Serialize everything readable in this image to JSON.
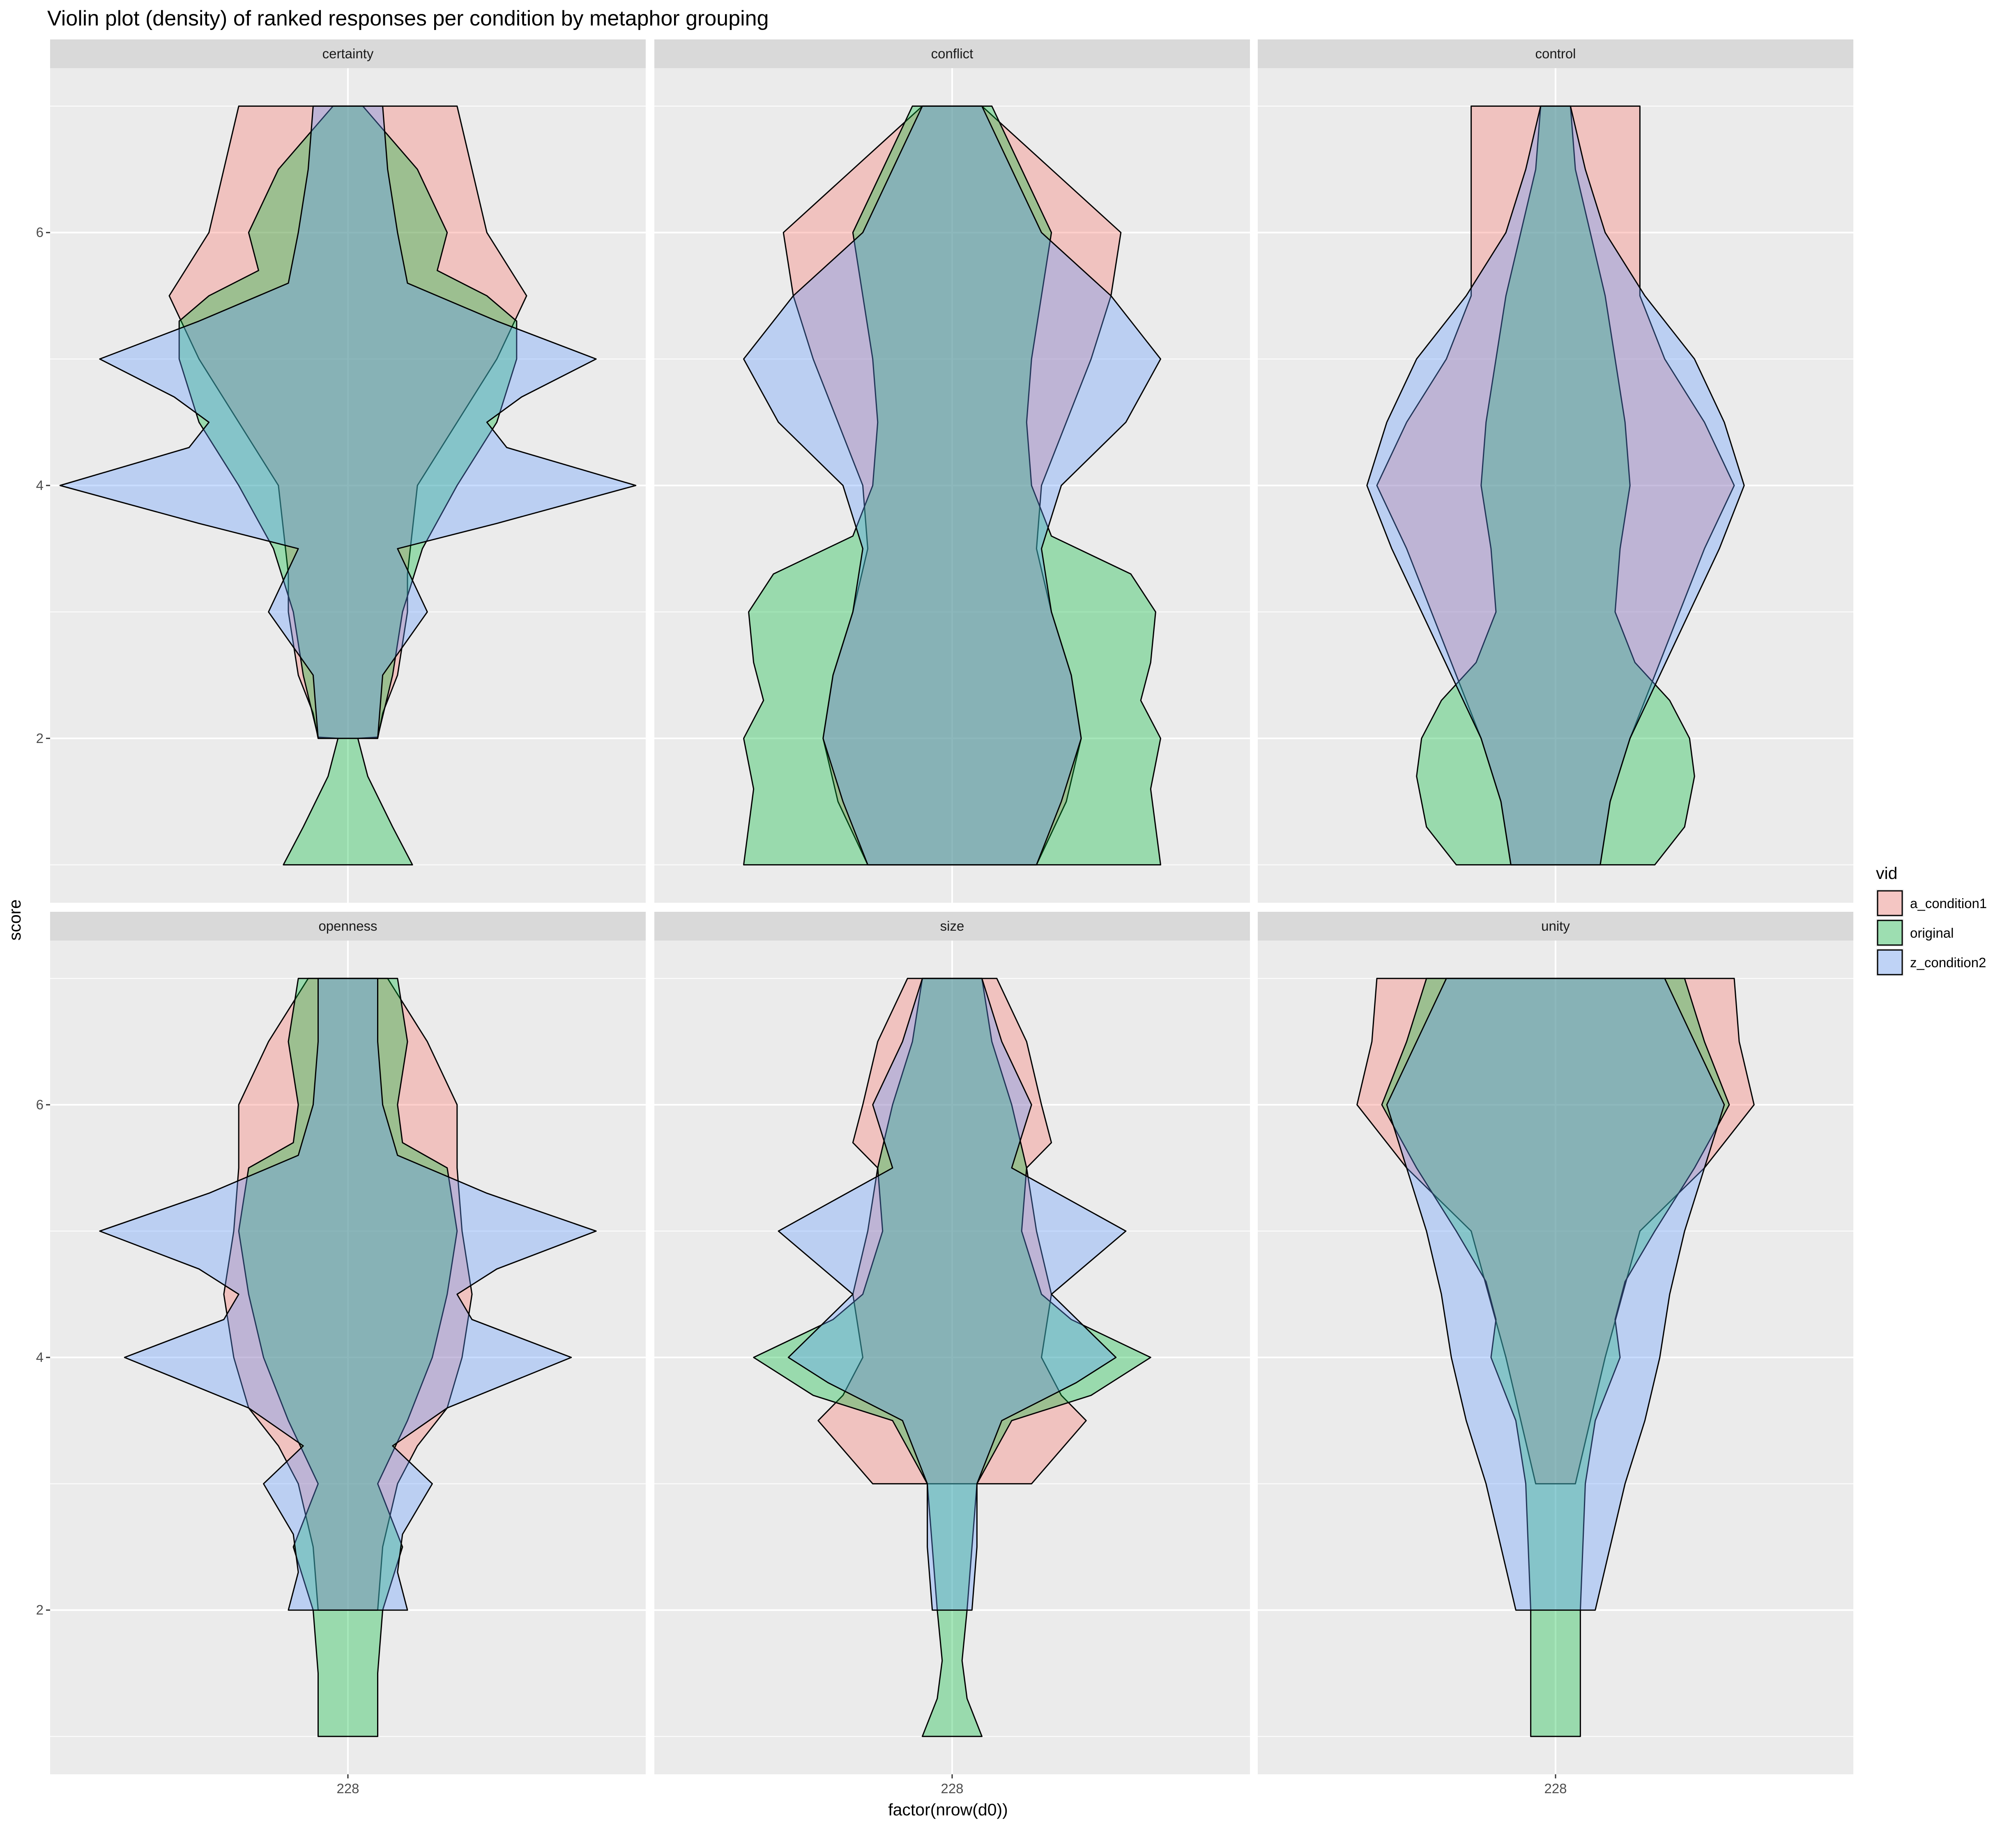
{
  "chart_data": {
    "type": "violin",
    "title": "Violin plot (density) of ranked responses per condition by metaphor grouping",
    "xlabel": "factor(nrow(d0))",
    "ylabel": "score",
    "x_categories": [
      "228"
    ],
    "ylim": [
      0.7,
      7.3
    ],
    "y_ticks": [
      2,
      4,
      6
    ],
    "grid": true,
    "legend": {
      "title": "vid",
      "position": "right",
      "entries": [
        {
          "name": "a_condition1",
          "color": "#F8766D"
        },
        {
          "name": "original",
          "color": "#00BA38"
        },
        {
          "name": "z_condition2",
          "color": "#619CFF"
        }
      ]
    },
    "facets": [
      {
        "label": "certainty",
        "violins": [
          {
            "series": "a_condition1",
            "y": [
              2,
              2.2,
              2.5,
              3,
              3.3,
              4,
              5,
              5.5,
              6,
              6.5,
              7
            ],
            "half_width": [
              0.06,
              0.07,
              0.1,
              0.12,
              0.12,
              0.14,
              0.3,
              0.36,
              0.28,
              0.25,
              0.22
            ]
          },
          {
            "series": "original",
            "y": [
              1,
              1.3,
              1.7,
              2,
              2.01,
              2.5,
              3,
              3.5,
              4,
              4.5,
              5,
              5.3,
              5.5,
              5.7,
              6,
              6.5,
              7
            ],
            "half_width": [
              0.13,
              0.09,
              0.04,
              0.02,
              0.06,
              0.09,
              0.11,
              0.15,
              0.22,
              0.3,
              0.34,
              0.34,
              0.28,
              0.18,
              0.2,
              0.14,
              0.03
            ]
          },
          {
            "series": "z_condition2",
            "y": [
              2,
              2.5,
              3,
              3.5,
              3.7,
              4,
              4.3,
              4.5,
              4.7,
              5,
              5.3,
              5.6,
              6,
              6.5,
              7
            ],
            "half_width": [
              0.06,
              0.07,
              0.16,
              0.1,
              0.3,
              0.58,
              0.32,
              0.28,
              0.35,
              0.5,
              0.3,
              0.12,
              0.1,
              0.08,
              0.07
            ]
          }
        ]
      },
      {
        "label": "conflict",
        "violins": [
          {
            "series": "a_condition1",
            "y": [
              1,
              1.5,
              2,
              2.5,
              3,
              3.5,
              4,
              4.5,
              5,
              5.5,
              6,
              6.5,
              7
            ],
            "half_width": [
              0.17,
              0.23,
              0.26,
              0.24,
              0.2,
              0.17,
              0.18,
              0.23,
              0.28,
              0.32,
              0.34,
              0.2,
              0.06
            ]
          },
          {
            "series": "original",
            "y": [
              1,
              1.3,
              1.6,
              2,
              2.3,
              2.6,
              3,
              3.3,
              3.6,
              4,
              4.5,
              5,
              5.5,
              6,
              6.5,
              7
            ],
            "half_width": [
              0.42,
              0.41,
              0.4,
              0.42,
              0.38,
              0.4,
              0.41,
              0.36,
              0.2,
              0.16,
              0.15,
              0.16,
              0.18,
              0.2,
              0.14,
              0.08
            ]
          },
          {
            "series": "z_condition2",
            "y": [
              1,
              1.5,
              2,
              2.5,
              3,
              3.5,
              4,
              4.5,
              5,
              5.5,
              6,
              6.5,
              7
            ],
            "half_width": [
              0.17,
              0.22,
              0.26,
              0.24,
              0.2,
              0.18,
              0.22,
              0.35,
              0.42,
              0.32,
              0.18,
              0.12,
              0.06
            ]
          }
        ]
      },
      {
        "label": "control",
        "violins": [
          {
            "series": "a_condition1",
            "y": [
              1,
              1.5,
              2,
              2.5,
              3,
              3.5,
              4,
              4.5,
              5,
              5.5,
              6,
              6.5,
              7
            ],
            "half_width": [
              0.09,
              0.11,
              0.15,
              0.2,
              0.25,
              0.3,
              0.36,
              0.3,
              0.22,
              0.17,
              0.17,
              0.17,
              0.17
            ]
          },
          {
            "series": "original",
            "y": [
              1,
              1.3,
              1.7,
              2,
              2.3,
              2.6,
              3,
              3.5,
              4,
              4.5,
              5,
              5.5,
              6,
              6.5,
              7
            ],
            "half_width": [
              0.2,
              0.26,
              0.28,
              0.27,
              0.23,
              0.16,
              0.12,
              0.13,
              0.15,
              0.14,
              0.12,
              0.1,
              0.07,
              0.04,
              0.03
            ]
          },
          {
            "series": "z_condition2",
            "y": [
              1,
              1.5,
              2,
              2.5,
              3,
              3.5,
              4,
              4.5,
              5,
              5.5,
              6,
              6.5,
              7
            ],
            "half_width": [
              0.09,
              0.11,
              0.15,
              0.21,
              0.27,
              0.33,
              0.38,
              0.34,
              0.28,
              0.18,
              0.1,
              0.06,
              0.03
            ]
          }
        ]
      },
      {
        "label": "openness",
        "violins": [
          {
            "series": "a_condition1",
            "y": [
              2,
              2.5,
              3,
              3.3,
              3.6,
              4,
              4.5,
              5,
              5.5,
              6,
              6.5,
              7
            ],
            "half_width": [
              0.06,
              0.07,
              0.1,
              0.14,
              0.2,
              0.23,
              0.25,
              0.23,
              0.22,
              0.22,
              0.16,
              0.08
            ]
          },
          {
            "series": "original",
            "y": [
              1,
              1.5,
              2,
              2.5,
              3,
              3.5,
              4,
              4.5,
              5,
              5.5,
              5.7,
              6,
              6.5,
              7
            ],
            "half_width": [
              0.06,
              0.06,
              0.07,
              0.11,
              0.06,
              0.12,
              0.17,
              0.2,
              0.22,
              0.2,
              0.11,
              0.1,
              0.12,
              0.1
            ]
          },
          {
            "series": "z_condition2",
            "y": [
              2,
              2.3,
              2.6,
              3,
              3.3,
              3.6,
              4,
              4.3,
              4.5,
              4.7,
              5,
              5.3,
              5.6,
              6,
              6.5,
              7
            ],
            "half_width": [
              0.12,
              0.1,
              0.11,
              0.17,
              0.09,
              0.2,
              0.45,
              0.25,
              0.22,
              0.3,
              0.5,
              0.28,
              0.1,
              0.07,
              0.06,
              0.06
            ]
          }
        ]
      },
      {
        "label": "size",
        "violins": [
          {
            "series": "a_condition1",
            "y": [
              3,
              3.5,
              3.7,
              4,
              4.5,
              5,
              5.5,
              5.7,
              6,
              6.5,
              7
            ],
            "half_width": [
              0.16,
              0.27,
              0.22,
              0.18,
              0.2,
              0.17,
              0.15,
              0.2,
              0.18,
              0.15,
              0.09
            ]
          },
          {
            "series": "original",
            "y": [
              1,
              1.3,
              1.6,
              2,
              2.5,
              3,
              3.5,
              3.7,
              4,
              4.3,
              4.5,
              5,
              5.5,
              6,
              6.5,
              7
            ],
            "half_width": [
              0.06,
              0.03,
              0.02,
              0.03,
              0.04,
              0.05,
              0.12,
              0.28,
              0.4,
              0.24,
              0.18,
              0.14,
              0.15,
              0.12,
              0.08,
              0.06
            ]
          },
          {
            "series": "z_condition2",
            "y": [
              2,
              2.5,
              3,
              3.5,
              3.8,
              4,
              4.5,
              5,
              5.5,
              6,
              6.5,
              7
            ],
            "half_width": [
              0.04,
              0.05,
              0.05,
              0.1,
              0.25,
              0.33,
              0.2,
              0.35,
              0.12,
              0.16,
              0.1,
              0.06
            ]
          }
        ]
      },
      {
        "label": "unity",
        "violins": [
          {
            "series": "a_condition1",
            "y": [
              3,
              4,
              5,
              5.5,
              6,
              6.5,
              7
            ],
            "half_width": [
              0.04,
              0.1,
              0.17,
              0.3,
              0.4,
              0.37,
              0.36
            ]
          },
          {
            "series": "original",
            "y": [
              1,
              2,
              3,
              3.5,
              4,
              4.3,
              4.6,
              5,
              5.5,
              6,
              6.5,
              7
            ],
            "half_width": [
              0.05,
              0.05,
              0.06,
              0.08,
              0.13,
              0.12,
              0.14,
              0.2,
              0.28,
              0.35,
              0.3,
              0.26
            ]
          },
          {
            "series": "z_condition2",
            "y": [
              2,
              2.5,
              3,
              3.5,
              4,
              4.5,
              5,
              5.5,
              6,
              6.5,
              7
            ],
            "half_width": [
              0.08,
              0.11,
              0.14,
              0.18,
              0.21,
              0.23,
              0.26,
              0.3,
              0.34,
              0.28,
              0.22
            ]
          }
        ]
      }
    ]
  }
}
